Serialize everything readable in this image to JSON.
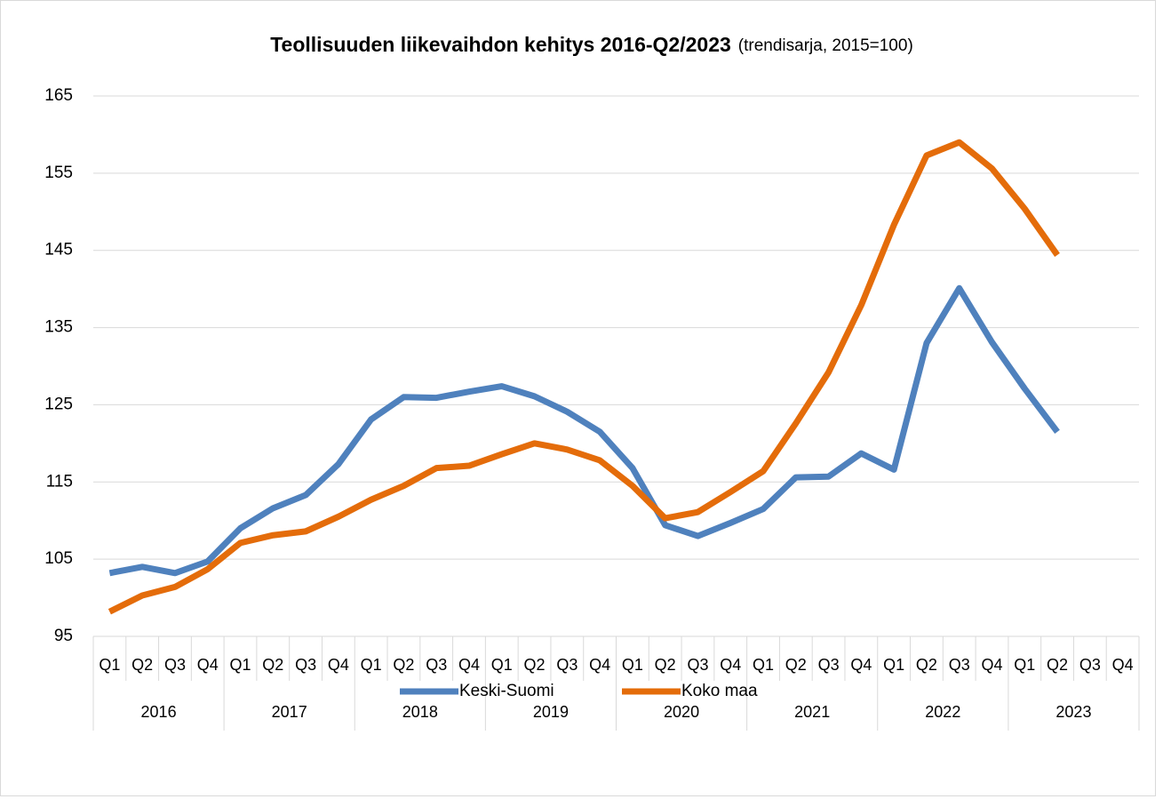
{
  "chart_data": {
    "type": "line",
    "title": "Teollisuuden liikevaihdon kehitys 2016-Q2/2023",
    "subtitle": "(trendisarja, 2015=100)",
    "categories": [
      "Q1",
      "Q2",
      "Q3",
      "Q4",
      "Q1",
      "Q2",
      "Q3",
      "Q4",
      "Q1",
      "Q2",
      "Q3",
      "Q4",
      "Q1",
      "Q2",
      "Q3",
      "Q4",
      "Q1",
      "Q2",
      "Q3",
      "Q4",
      "Q1",
      "Q2",
      "Q3",
      "Q4",
      "Q1",
      "Q2",
      "Q3",
      "Q4",
      "Q1",
      "Q2",
      "Q3",
      "Q4"
    ],
    "years": [
      "2016",
      "2017",
      "2018",
      "2019",
      "2020",
      "2021",
      "2022",
      "2023"
    ],
    "series": [
      {
        "name": "Keski-Suomi",
        "color": "#4f81bd",
        "values": [
          103.2,
          104.0,
          103.2,
          104.7,
          109.0,
          111.6,
          113.3,
          117.3,
          123.1,
          126.0,
          125.9,
          126.7,
          127.4,
          126.1,
          124.1,
          121.5,
          116.8,
          109.4,
          108.0,
          109.7,
          111.5,
          115.6,
          115.7,
          118.7,
          116.6,
          133.0,
          140.1,
          133.1,
          127.1,
          121.5,
          null,
          null
        ]
      },
      {
        "name": "Koko maa",
        "color": "#e46c0a",
        "values": [
          98.2,
          100.3,
          101.4,
          103.7,
          107.1,
          108.1,
          108.6,
          110.5,
          112.7,
          114.5,
          116.8,
          117.1,
          118.6,
          120.0,
          119.2,
          117.8,
          114.5,
          110.3,
          111.1,
          113.7,
          116.4,
          122.6,
          129.2,
          137.9,
          148.3,
          157.3,
          159.0,
          155.6,
          150.4,
          144.4,
          null,
          null
        ]
      }
    ],
    "ylim": [
      95,
      165
    ],
    "yticks": [
      95,
      105,
      115,
      125,
      135,
      145,
      155,
      165
    ],
    "grid": true,
    "legend": "bottom"
  }
}
